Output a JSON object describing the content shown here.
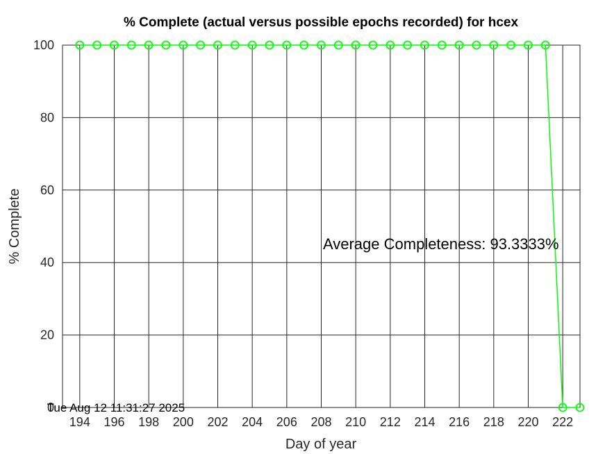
{
  "chart_data": {
    "type": "line",
    "title": "% Complete (actual versus possible epochs recorded) for hcex",
    "xlabel": "Day of year",
    "ylabel": "% Complete",
    "xlim": [
      193,
      223
    ],
    "ylim": [
      0,
      100
    ],
    "xticks": [
      194,
      196,
      198,
      200,
      202,
      204,
      206,
      208,
      210,
      212,
      214,
      216,
      218,
      220,
      222
    ],
    "yticks": [
      0,
      20,
      40,
      60,
      80,
      100
    ],
    "grid": true,
    "series": [
      {
        "color": "#00ff00",
        "marker": "circle",
        "x": [
          194,
          195,
          196,
          197,
          198,
          199,
          200,
          201,
          202,
          203,
          204,
          205,
          206,
          207,
          208,
          209,
          210,
          211,
          212,
          213,
          214,
          215,
          216,
          217,
          218,
          219,
          220,
          221,
          222,
          223
        ],
        "y": [
          100,
          100,
          100,
          100,
          100,
          100,
          100,
          100,
          100,
          100,
          100,
          100,
          100,
          100,
          100,
          100,
          100,
          100,
          100,
          100,
          100,
          100,
          100,
          100,
          100,
          100,
          100,
          100,
          0,
          0
        ]
      }
    ],
    "annotations": [
      {
        "text": "Average Completeness: 93.3333%",
        "x": 208.1,
        "y": 44.8
      },
      {
        "text": "Tue Aug 12 11:31:27 2025",
        "x": 192.1,
        "y": 0
      }
    ]
  }
}
